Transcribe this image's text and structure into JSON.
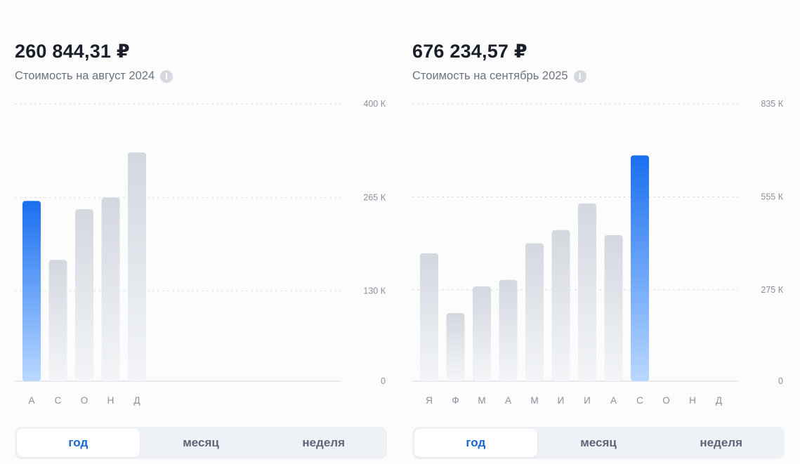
{
  "panels": [
    {
      "amount": "260 844,31 ₽",
      "subtitle": "Стоимость на август 2024",
      "tabs": [
        "год",
        "месяц",
        "неделя"
      ],
      "active_tab": 0
    },
    {
      "amount": "676 234,57 ₽",
      "subtitle": "Стоимость на сентябрь 2025",
      "tabs": [
        "год",
        "месяц",
        "неделя"
      ],
      "active_tab": 0
    }
  ],
  "colors": {
    "active_bar_top": "#1a6ff0",
    "active_bar_bottom": "#b9d8ff",
    "bar_top": "#d3d8df",
    "bar_bottom": "#f3f5f8",
    "grid": "#d9dde3",
    "axis_text": "#8a909a",
    "tab_active_text": "#1565d8"
  },
  "info_icon": "info-circle-icon",
  "chart_data": [
    {
      "type": "bar",
      "categories": [
        "А",
        "С",
        "О",
        "Н",
        "Д"
      ],
      "slots": 12,
      "values": [
        260,
        175,
        248,
        265,
        330
      ],
      "highlight_index": 0,
      "ylim": [
        0,
        400
      ],
      "y_ticks": [
        {
          "value": 0,
          "label": "0"
        },
        {
          "value": 130,
          "label": "130 К"
        },
        {
          "value": 265,
          "label": "265 К"
        },
        {
          "value": 400,
          "label": "400 К"
        }
      ]
    },
    {
      "type": "bar",
      "categories": [
        "Я",
        "Ф",
        "М",
        "А",
        "М",
        "И",
        "И",
        "А",
        "С",
        "О",
        "Н",
        "Д"
      ],
      "slots": 12,
      "values": [
        385,
        205,
        285,
        305,
        415,
        455,
        535,
        440,
        680,
        null,
        null,
        null
      ],
      "highlight_index": 8,
      "ylim": [
        0,
        835
      ],
      "y_ticks": [
        {
          "value": 0,
          "label": "0"
        },
        {
          "value": 275,
          "label": "275 К"
        },
        {
          "value": 555,
          "label": "555 К"
        },
        {
          "value": 835,
          "label": "835 К"
        }
      ]
    }
  ]
}
